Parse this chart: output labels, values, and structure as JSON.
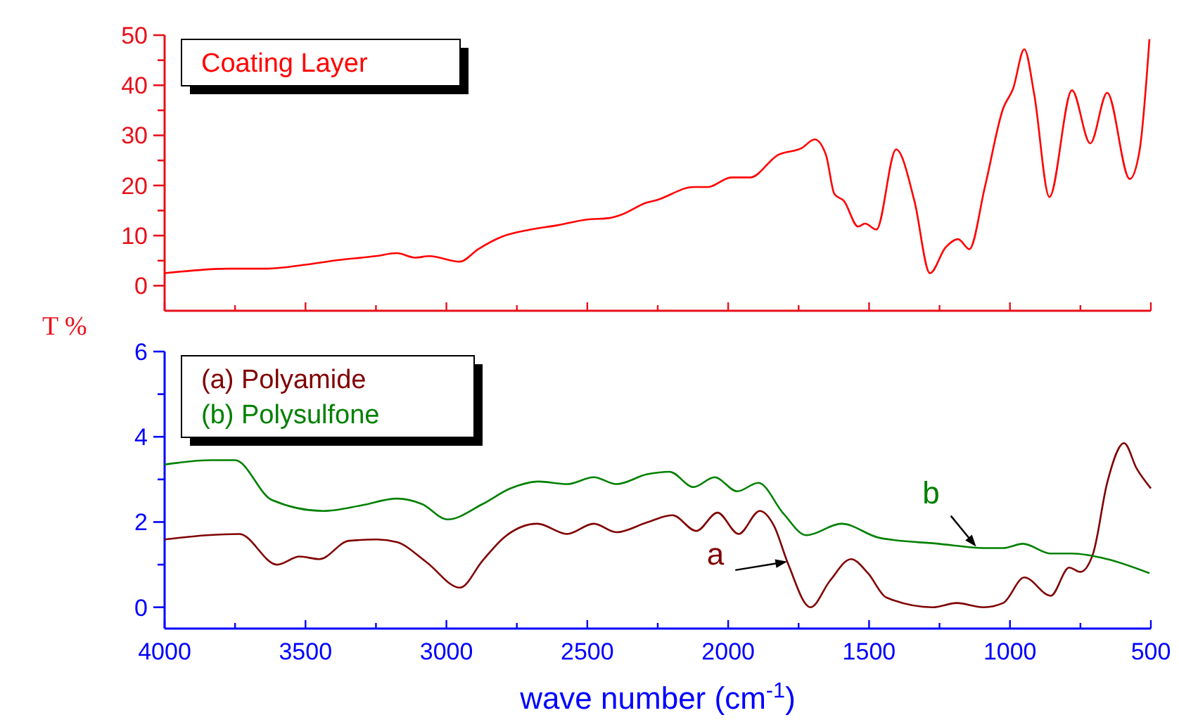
{
  "chart_data": [
    {
      "type": "line",
      "ylabel": "T %",
      "legend": "top left",
      "tick_labels": "y",
      "xlim": [
        4000,
        500
      ],
      "xticks": [
        4000,
        {
          "value": 3750,
          "label": null
        },
        3500,
        {
          "value": 3250,
          "label": null
        },
        3000,
        {
          "value": 2750,
          "label": null
        },
        2500,
        {
          "value": 2250,
          "label": null
        },
        2000,
        {
          "value": 1750,
          "label": null
        },
        1500,
        {
          "value": 1250,
          "label": null
        },
        1000,
        {
          "value": 750,
          "label": null
        },
        500
      ],
      "ylim": [
        -5,
        50
      ],
      "yticks": [
        0,
        {
          "value": 5,
          "label": null
        },
        10,
        {
          "value": 15,
          "label": null
        },
        20,
        {
          "value": 25,
          "label": null
        },
        30,
        {
          "value": 35,
          "label": null
        },
        40,
        {
          "value": 45,
          "label": null
        },
        50
      ],
      "series": [
        {
          "name": "Coating Layer",
          "color": "#ff0000",
          "x": [
            4000,
            3770,
            3636,
            3500,
            3386,
            3251,
            3176,
            3111,
            3061,
            2952,
            2887,
            2802,
            2702,
            2602,
            2502,
            2422,
            2387,
            2288,
            2253,
            2123,
            2073,
            1988,
            1923,
            1823,
            1738,
            1693,
            1653,
            1623,
            1589,
            1539,
            1514,
            1474,
            1404,
            1339,
            1284,
            1229,
            1184,
            1144,
            1089,
            1024,
            989,
            949,
            914,
            860,
            780,
            715,
            655,
            575,
            540,
            505
          ],
          "values": [
            2.5,
            3.4,
            3.4,
            4.2,
            5.1,
            5.9,
            6.5,
            5.6,
            5.9,
            4.8,
            7.3,
            9.8,
            11.2,
            12.1,
            13.2,
            13.5,
            14.0,
            16.6,
            17.1,
            19.7,
            19.7,
            21.6,
            21.6,
            26.1,
            27.5,
            29.2,
            26.1,
            18.3,
            16.9,
            11.8,
            12.4,
            11.2,
            27.2,
            16.9,
            2.5,
            7.6,
            9.3,
            7.3,
            19.7,
            35.4,
            39.3,
            47.2,
            38.2,
            17.7,
            39.0,
            28.4,
            38.5,
            21.3,
            27.0,
            49.2
          ]
        }
      ]
    },
    {
      "type": "line",
      "xlabel": "wave number (cm$^{-1}$)",
      "legend": "top left",
      "xlim": [
        4000,
        500
      ],
      "xticks": [
        4000,
        {
          "value": 3750,
          "label": null
        },
        3500,
        {
          "value": 3250,
          "label": null
        },
        3000,
        {
          "value": 2750,
          "label": null
        },
        2500,
        {
          "value": 2250,
          "label": null
        },
        2000,
        {
          "value": 1750,
          "label": null
        },
        1500,
        {
          "value": 1250,
          "label": null
        },
        1000,
        {
          "value": 750,
          "label": null
        },
        500
      ],
      "ylim": [
        -0.5,
        6
      ],
      "yticks": [
        0,
        {
          "value": 1,
          "label": null
        },
        2,
        {
          "value": 3,
          "label": null
        },
        4,
        {
          "value": 5,
          "label": null
        },
        6
      ],
      "annotations": [
        {
          "text": "a",
          "x": 1790,
          "y": 1.07
        },
        {
          "text": "b",
          "x": 1120,
          "y": 1.42
        }
      ],
      "series": [
        {
          "name": "(a) Polyamide",
          "color": "#800000",
          "x": [
            4000,
            3850,
            3735,
            3601,
            3521,
            3451,
            3346,
            3246,
            3176,
            3071,
            2952,
            2872,
            2797,
            2677,
            2572,
            2477,
            2397,
            2288,
            2198,
            2113,
            2038,
            1963,
            1888,
            1838,
            1788,
            1708,
            1638,
            1564,
            1504,
            1439,
            1274,
            1189,
            1094,
            1024,
            949,
            855,
            790,
            750,
            705,
            655,
            595,
            550,
            500
          ],
          "values": [
            1.59,
            1.69,
            1.72,
            1.0,
            1.19,
            1.13,
            1.56,
            1.59,
            1.53,
            1.06,
            0.46,
            1.09,
            1.63,
            1.96,
            1.72,
            1.96,
            1.76,
            1.99,
            2.16,
            1.79,
            2.22,
            1.72,
            2.26,
            1.92,
            1.03,
            0.0,
            0.63,
            1.13,
            0.8,
            0.23,
            0.0,
            0.1,
            0.0,
            0.1,
            0.7,
            0.27,
            0.93,
            0.83,
            1.26,
            2.92,
            3.85,
            3.25,
            2.79
          ]
        },
        {
          "name": "(b) Polysulfone",
          "color": "#008000",
          "x": [
            4000,
            3835,
            3750,
            3620,
            3436,
            3301,
            3176,
            3086,
            2996,
            2872,
            2772,
            2672,
            2572,
            2477,
            2397,
            2288,
            2208,
            2123,
            2048,
            1968,
            1893,
            1803,
            1723,
            1598,
            1464,
            1254,
            1089,
            1024,
            954,
            855,
            780,
            655,
            505
          ],
          "values": [
            3.35,
            3.45,
            3.45,
            2.52,
            2.26,
            2.39,
            2.55,
            2.42,
            2.06,
            2.42,
            2.79,
            2.95,
            2.89,
            3.05,
            2.89,
            3.12,
            3.18,
            2.82,
            3.05,
            2.72,
            2.92,
            2.19,
            1.69,
            1.96,
            1.63,
            1.49,
            1.39,
            1.39,
            1.49,
            1.26,
            1.26,
            1.13,
            0.8
          ]
        }
      ]
    }
  ]
}
